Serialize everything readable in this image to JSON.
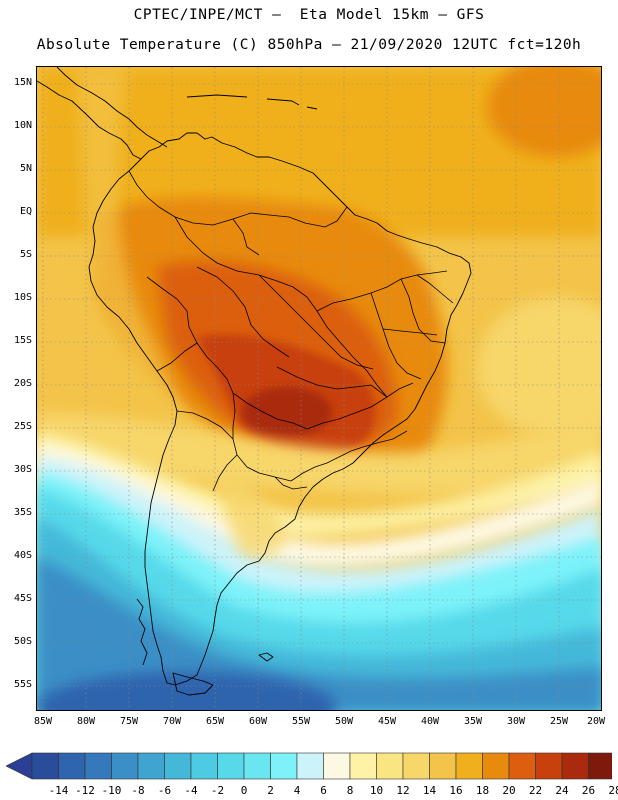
{
  "title": {
    "line1": "CPTEC/INPE/MCT –  Eta Model 15km – GFS",
    "line2": "Absolute Temperature (C) 850hPa – 21/09/2020 12UTC fct=120h"
  },
  "map": {
    "lat_labels": [
      "15N",
      "10N",
      "5N",
      "EQ",
      "5S",
      "10S",
      "15S",
      "20S",
      "25S",
      "30S",
      "35S",
      "40S",
      "45S",
      "50S",
      "55S"
    ],
    "lon_labels": [
      "85W",
      "80W",
      "75W",
      "70W",
      "65W",
      "60W",
      "55W",
      "50W",
      "45W",
      "40W",
      "35W",
      "30W",
      "25W",
      "20W"
    ],
    "lat_range": [
      17,
      -57
    ],
    "lon_range": [
      -86,
      -20
    ],
    "variable": "Absolute Temperature (C) 850hPa"
  },
  "colorbar": {
    "labels": [
      "-14",
      "-12",
      "-10",
      "-8",
      "-6",
      "-4",
      "-2",
      "0",
      "2",
      "4",
      "6",
      "8",
      "10",
      "12",
      "14",
      "16",
      "18",
      "20",
      "22",
      "24",
      "26",
      "28"
    ],
    "colors": [
      "#2a4d9b",
      "#2f64ae",
      "#3479bb",
      "#3a8fc6",
      "#3fa4cf",
      "#45b8d9",
      "#4ccbe2",
      "#57d9ea",
      "#6ae6f1",
      "#7df2f9",
      "#cdf3fa",
      "#fdf8e1",
      "#fdf2a6",
      "#fae583",
      "#f7d66a",
      "#f3c449",
      "#f0b01e",
      "#e88a0e",
      "#dc5e0e",
      "#c8400c",
      "#a92a0c",
      "#7d1a0c"
    ],
    "under_color": "#2b3f97",
    "over_color": "#7a0a28"
  }
}
